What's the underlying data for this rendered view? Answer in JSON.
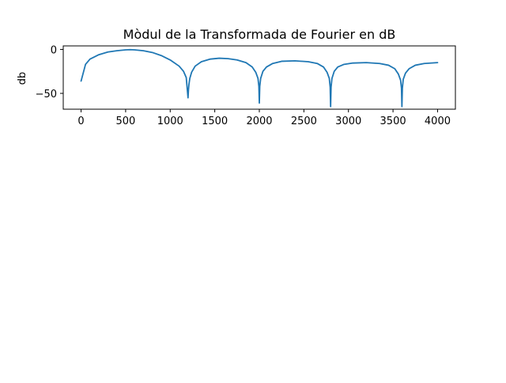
{
  "chart_data": {
    "type": "line",
    "title": "Mòdul de la Transformada de Fourier en dB",
    "xlabel": "",
    "ylabel": "db",
    "xlim": [
      -200,
      4200
    ],
    "ylim": [
      -68,
      4
    ],
    "x_ticks": [
      0,
      500,
      1000,
      1500,
      2000,
      2500,
      3000,
      3500,
      4000
    ],
    "x_tick_labels": [
      "0",
      "500",
      "1000",
      "1500",
      "2000",
      "2500",
      "3000",
      "3500",
      "4000"
    ],
    "y_ticks": [
      0,
      -50
    ],
    "y_tick_labels": [
      "0",
      "−50"
    ],
    "grid": false,
    "line_color": "#1f77b4",
    "series": [
      {
        "x": [
          0,
          50,
          100,
          200,
          300,
          400,
          500,
          550,
          600,
          700,
          800,
          900,
          1000,
          1100,
          1150,
          1180,
          1200,
          1205,
          1210,
          1220,
          1240,
          1280,
          1350,
          1450,
          1550,
          1650,
          1750,
          1850,
          1920,
          1960,
          1985,
          1995,
          2000,
          2005,
          2015,
          2040,
          2080,
          2150,
          2250,
          2400,
          2550,
          2650,
          2720,
          2760,
          2785,
          2795,
          2800,
          2805,
          2815,
          2840,
          2880,
          2950,
          3050,
          3200,
          3350,
          3450,
          3520,
          3560,
          3585,
          3595,
          3600,
          3605,
          3615,
          3640,
          3680,
          3750,
          3850,
          4000
        ],
        "y": [
          -36,
          -17,
          -11,
          -6,
          -3,
          -1.5,
          -0.5,
          -0.3,
          -0.5,
          -1.5,
          -3.5,
          -7,
          -12,
          -19,
          -25,
          -32,
          -55,
          -46,
          -40,
          -33,
          -26,
          -19,
          -14,
          -11,
          -10,
          -10.5,
          -12,
          -15,
          -20,
          -26,
          -33,
          -42,
          -61,
          -42,
          -33,
          -25,
          -20,
          -16,
          -13.5,
          -13,
          -14,
          -16,
          -20,
          -26,
          -33,
          -43,
          -65,
          -43,
          -33,
          -25,
          -20,
          -17,
          -15.5,
          -15,
          -16,
          -18,
          -22,
          -28,
          -35,
          -44,
          -65,
          -44,
          -34,
          -27,
          -22,
          -18,
          -16,
          -15
        ]
      }
    ]
  }
}
